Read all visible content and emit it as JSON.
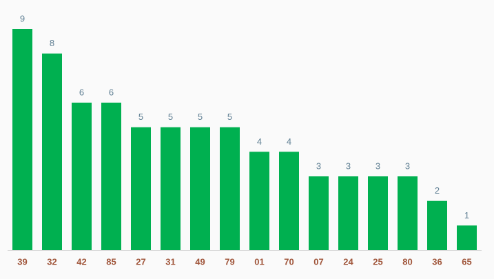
{
  "chart_data": {
    "type": "bar",
    "categories": [
      "39",
      "32",
      "42",
      "85",
      "27",
      "31",
      "49",
      "79",
      "01",
      "70",
      "07",
      "24",
      "25",
      "80",
      "36",
      "65"
    ],
    "values": [
      9,
      8,
      6,
      6,
      5,
      5,
      5,
      5,
      4,
      4,
      3,
      3,
      3,
      3,
      2,
      1
    ],
    "color": "#00b050"
  }
}
